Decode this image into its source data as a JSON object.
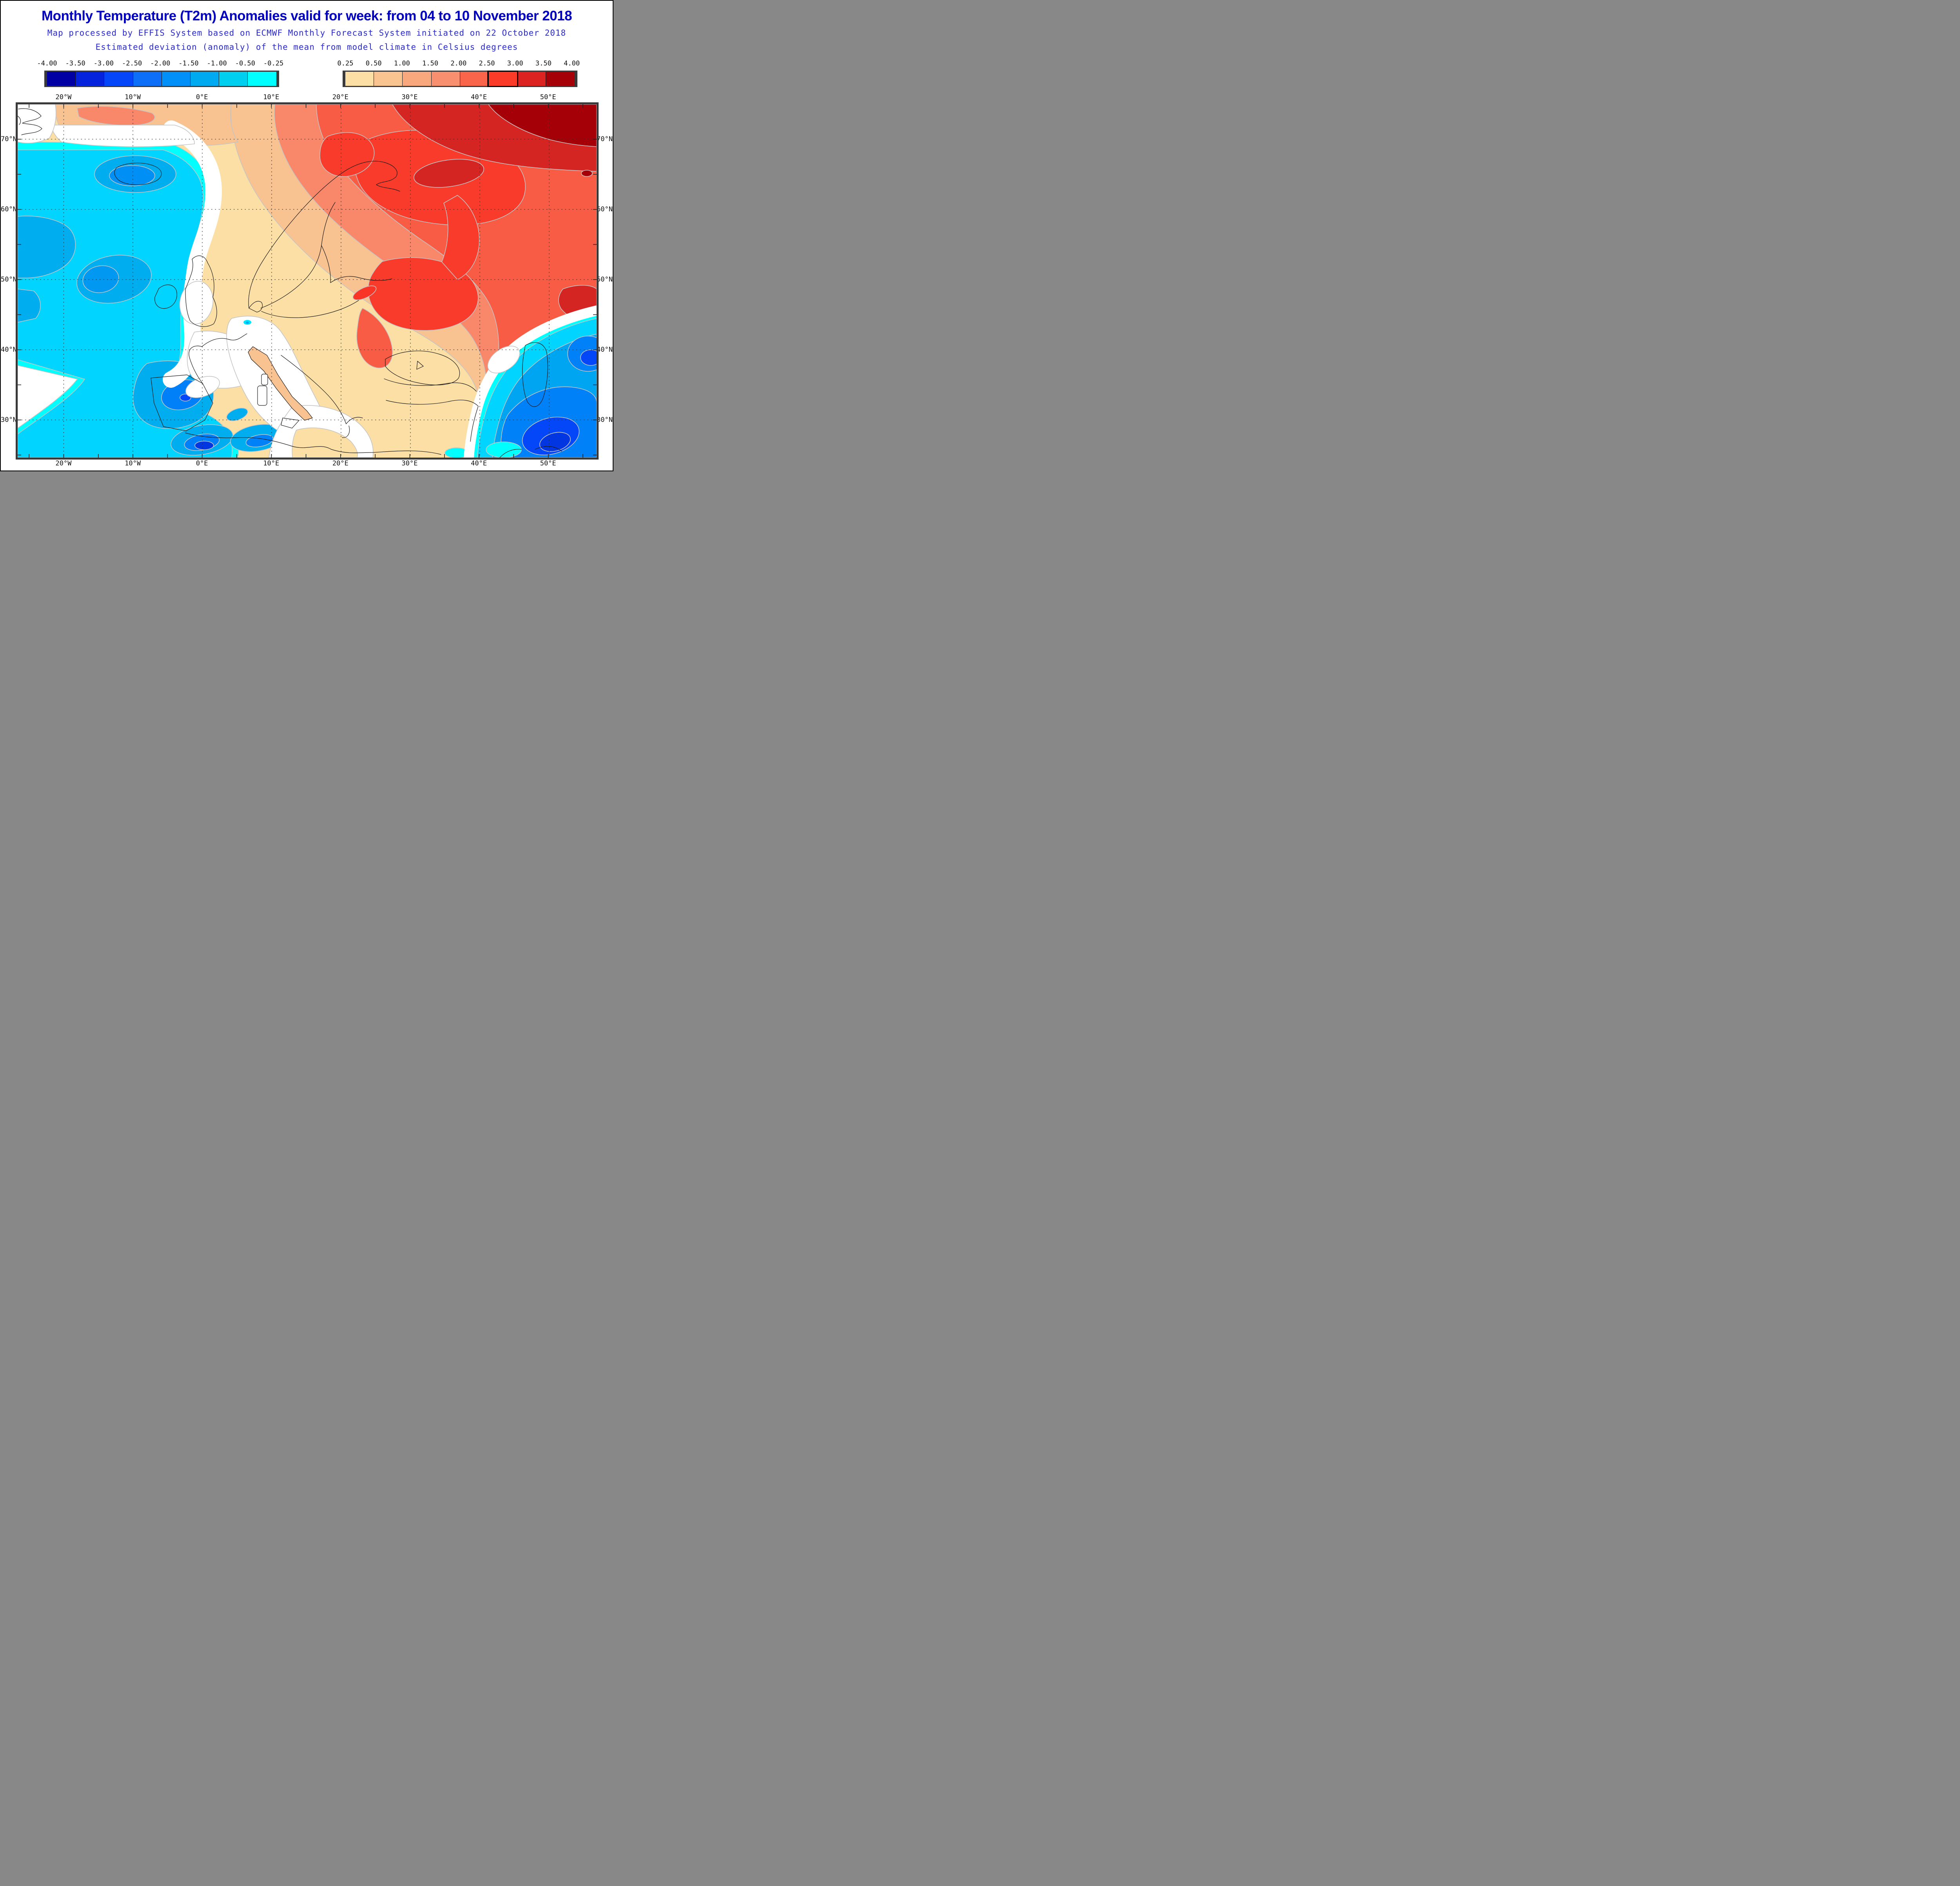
{
  "header": {
    "title": "Monthly Temperature (T2m) Anomalies valid for week: from 04 to 10 November 2018",
    "subtitle_line1": "Map processed by EFFIS System based on ECMWF Monthly Forecast System initiated on 22 October 2018",
    "subtitle_line2": "Estimated deviation (anomaly) of the mean from model climate in Celsius degrees",
    "title_color": "#0000BC",
    "subtitle_color": "#2A2ACC"
  },
  "legend": {
    "negative": {
      "tick_labels": [
        "-4.00",
        "-3.50",
        "-3.00",
        "-2.50",
        "-2.00",
        "-1.50",
        "-1.00",
        "-0.50",
        "-0.25"
      ],
      "cell_colors": [
        "#0000A5",
        "#0522DC",
        "#0546F8",
        "#0D6FF8",
        "#0090F8",
        "#00AAF0",
        "#00CFF0",
        "#00FFFF"
      ]
    },
    "positive": {
      "tick_labels": [
        "0.25",
        "0.50",
        "1.00",
        "1.50",
        "2.00",
        "2.50",
        "3.00",
        "3.50",
        "4.00"
      ],
      "cell_colors": [
        "#FBDFA5",
        "#FAC491",
        "#F9A87E",
        "#F8906F",
        "#F9654A",
        "#F93B28",
        "#DD2222",
        "#A50008"
      ],
      "highlighted_cell_index": 5
    }
  },
  "map_axes": {
    "longitude_labels": [
      "20°W",
      "10°W",
      "0°E",
      "10°E",
      "20°E",
      "30°E",
      "40°E",
      "50°E"
    ],
    "latitude_labels": [
      "70°N",
      "60°N",
      "50°N",
      "40°N",
      "30°N"
    ]
  },
  "chart_data": {
    "type": "heatmap",
    "title": "Monthly Temperature (T2m) Anomalies valid for week: from 04 to 10 November 2018",
    "subtitle": "Estimated deviation (anomaly) of the mean from model climate in Celsius degrees",
    "source": "Map processed by EFFIS System based on ECMWF Monthly Forecast System initiated on 22 October 2018",
    "units": "°C anomaly",
    "colorbar_boundaries": [
      -4.0,
      -3.5,
      -3.0,
      -2.5,
      -2.0,
      -1.5,
      -1.0,
      -0.5,
      -0.25,
      0.25,
      0.5,
      1.0,
      1.5,
      2.0,
      2.5,
      3.0,
      3.5,
      4.0
    ],
    "xlabel": "longitude",
    "ylabel": "latitude",
    "x_ticks": [
      "20°W",
      "10°W",
      "0°E",
      "10°E",
      "20°E",
      "30°E",
      "40°E",
      "50°E"
    ],
    "y_ticks": [
      "70°N",
      "60°N",
      "50°N",
      "40°N",
      "30°N"
    ],
    "grid": "dotted graticule every 10 degrees",
    "legend_position": "two horizontal colorbars above map (negative left, positive right)",
    "regions": [
      {
        "region": "North Atlantic west of British Isles",
        "anomaly_c": "-1.0 to -2.0"
      },
      {
        "region": "Iceland",
        "anomaly_c": "-1.0 to -2.0"
      },
      {
        "region": "Ireland / western Scotland",
        "anomaly_c": "-0.5 to -1.5"
      },
      {
        "region": "England - northern France band",
        "anomaly_c": "-0.25 to +0.25 (near normal)"
      },
      {
        "region": "Iberian Peninsula interior",
        "anomaly_c": "-1.5 to -2.5"
      },
      {
        "region": "Morocco / Gibraltar area",
        "anomaly_c": "-2.5 to -3.5"
      },
      {
        "region": "Western Mediterranean",
        "anomaly_c": "-1.0 to -2.5"
      },
      {
        "region": "Italy / central Mediterranean",
        "anomaly_c": "near 0 to +0.5"
      },
      {
        "region": "Central Europe (Germany/Poland)",
        "anomaly_c": "+0.5 to +1.5"
      },
      {
        "region": "Scandinavia / Baltic",
        "anomaly_c": "+1.5 to +2.5"
      },
      {
        "region": "Eastern Europe / Ukraine / Black Sea",
        "anomaly_c": "+2.0 to +3.0"
      },
      {
        "region": "Northwest Russia / Barents coast (top-right)",
        "anomaly_c": "+3.0 to +4.0"
      },
      {
        "region": "Greenland edge (northwest corner)",
        "anomaly_c": "mixed, near normal"
      },
      {
        "region": "Caspian / Middle East (southeast corner)",
        "anomaly_c": "-1.5 to -3.0"
      },
      {
        "region": "Arabian / Red Sea corner (bottom right)",
        "anomaly_c": "-2.0 to -3.0"
      }
    ]
  }
}
